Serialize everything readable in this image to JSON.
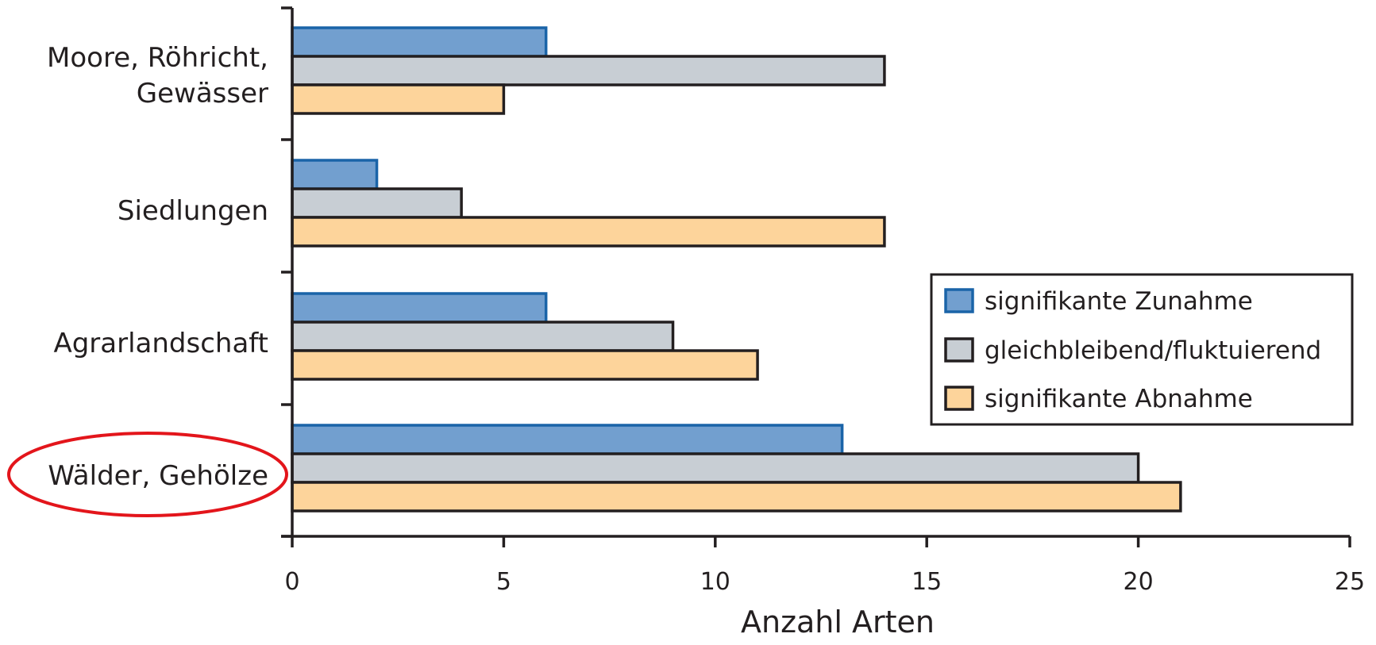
{
  "chart_data": {
    "type": "bar",
    "orientation": "horizontal",
    "categories": [
      "Moore, Röhricht, Gewässer",
      "Siedlungen",
      "Agrarlandschaft",
      "Wälder, Gehölze"
    ],
    "category_lines": [
      [
        "Moore, Röhricht,",
        "Gewässer"
      ],
      [
        "Siedlungen"
      ],
      [
        "Agrarlandschaft"
      ],
      [
        "Wälder, Gehölze"
      ]
    ],
    "series": [
      {
        "name": "signifikante Zunahme",
        "values": [
          6,
          2,
          6,
          13
        ],
        "fill": "#729fcf",
        "stroke": "#1a64a8"
      },
      {
        "name": "gleichbleibend/fluktuierend",
        "values": [
          14,
          4,
          9,
          20
        ],
        "fill": "#c8ced4",
        "stroke": "#231f20"
      },
      {
        "name": "signifikante Abnahme",
        "values": [
          5,
          14,
          11,
          21
        ],
        "fill": "#fdd49b",
        "stroke": "#231f20"
      }
    ],
    "xlabel": "Anzahl Arten",
    "xlim": [
      0,
      25
    ],
    "xticks": [
      "0",
      "5",
      "10",
      "15",
      "20",
      "25"
    ],
    "grid": false,
    "legend_position": "right",
    "highlighted_category": "Wälder, Gehölze",
    "highlight_color": "#e3151b"
  }
}
